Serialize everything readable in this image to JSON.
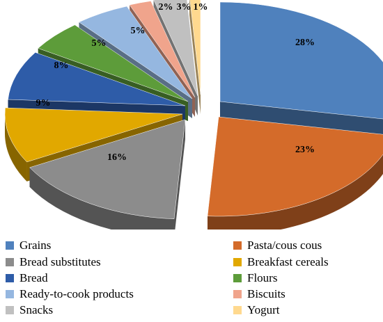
{
  "chart_data": {
    "type": "pie",
    "title": "",
    "slices": [
      {
        "label": "Grains",
        "value": 28,
        "text": "28%",
        "color": "#4f81bd"
      },
      {
        "label": "Pasta/cous cous",
        "value": 23,
        "text": "23%",
        "color": "#d46b2a"
      },
      {
        "label": "Bread substitutes",
        "value": 16,
        "text": "16%",
        "color": "#8c8c8c"
      },
      {
        "label": "Breakfast cereals",
        "value": 9,
        "text": "9%",
        "color": "#e1a800"
      },
      {
        "label": "Bread",
        "value": 8,
        "text": "8%",
        "color": "#2e5ca8"
      },
      {
        "label": "Flours",
        "value": 5,
        "text": "5%",
        "color": "#5d9c3a"
      },
      {
        "label": "Ready-to-cook products",
        "value": 5,
        "text": "5%",
        "color": "#95b7e0"
      },
      {
        "label": "Biscuits",
        "value": 2,
        "text": "2%",
        "color": "#f0a48c"
      },
      {
        "label": "Snacks",
        "value": 3,
        "text": "3%",
        "color": "#c0c0c0"
      },
      {
        "label": "Yogurt",
        "value": 1,
        "text": "1%",
        "color": "#ffd98f"
      }
    ],
    "legend_position": "bottom",
    "style": "3d-exploded-pie"
  }
}
